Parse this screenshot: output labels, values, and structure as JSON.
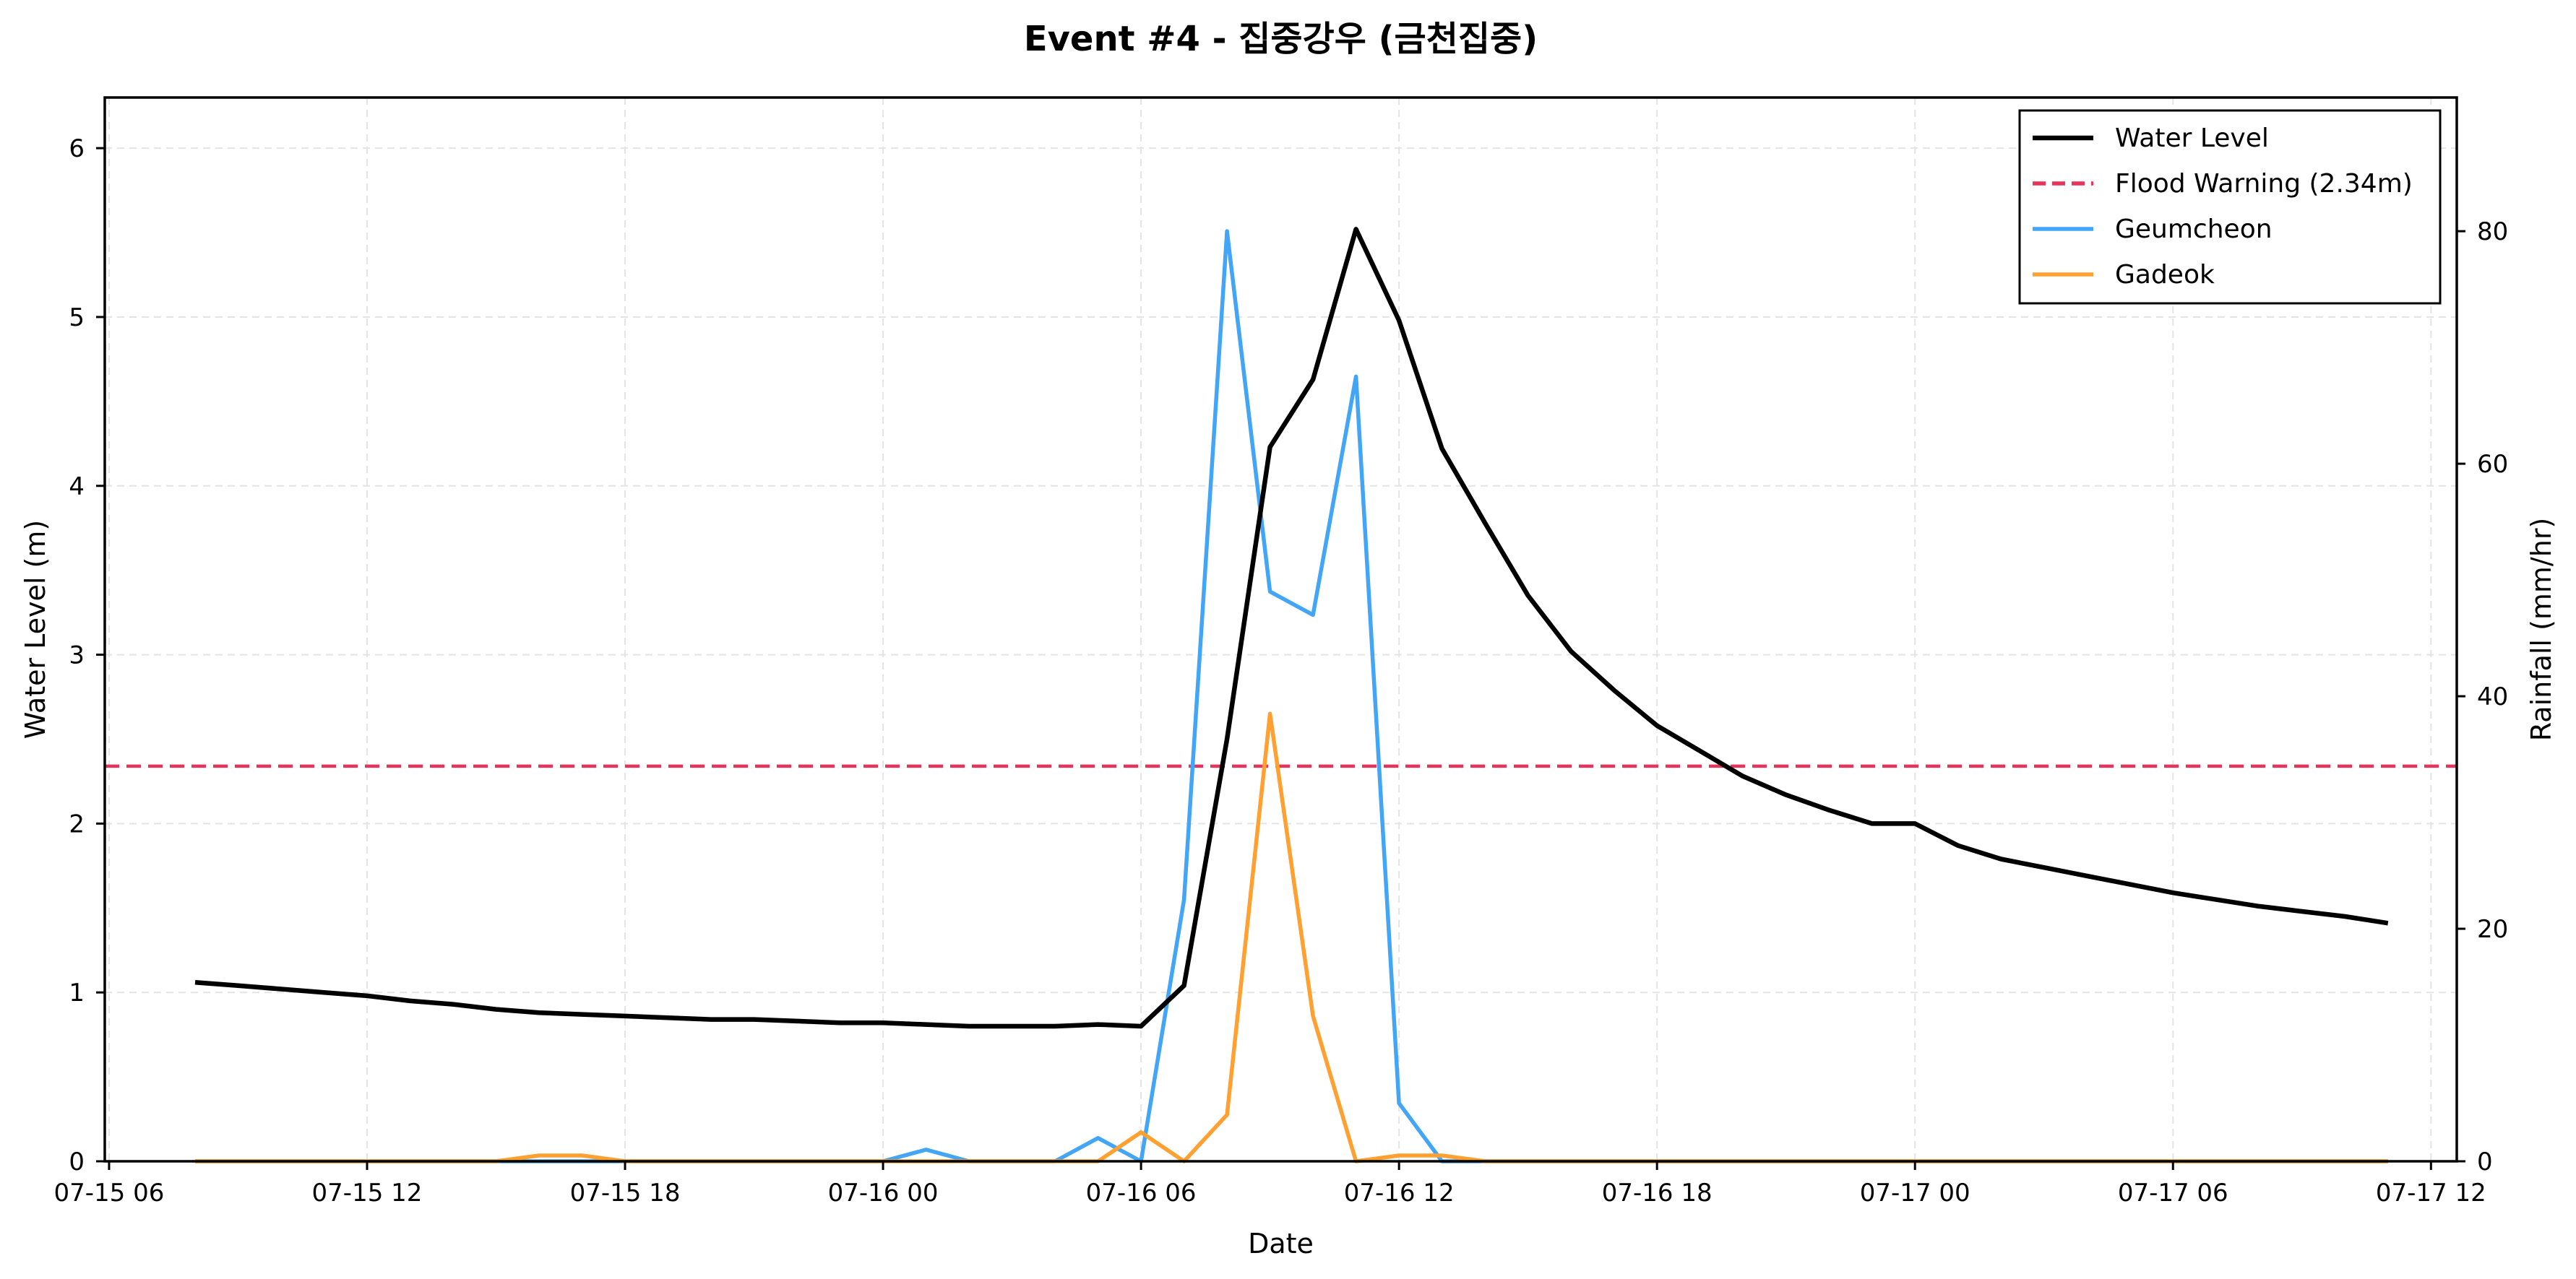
{
  "chart_data": {
    "type": "line",
    "title": "Event #4 - 집중강우 (금천집중)",
    "xlabel": "Date",
    "ylabel_left": "Water Level (m)",
    "ylabel_right": "Rainfall (mm/hr)",
    "ylim_left": [
      0,
      6.3
    ],
    "ylim_right": [
      0,
      91.5
    ],
    "xlim_hours": [
      5.9,
      60.6
    ],
    "x_unit": "hours after 07-15 00:00",
    "x_ticks": [
      {
        "hour": 6,
        "label": "07-15 06"
      },
      {
        "hour": 12,
        "label": "07-15 12"
      },
      {
        "hour": 18,
        "label": "07-15 18"
      },
      {
        "hour": 24,
        "label": "07-16 00"
      },
      {
        "hour": 30,
        "label": "07-16 06"
      },
      {
        "hour": 36,
        "label": "07-16 12"
      },
      {
        "hour": 42,
        "label": "07-16 18"
      },
      {
        "hour": 48,
        "label": "07-17 00"
      },
      {
        "hour": 54,
        "label": "07-17 06"
      },
      {
        "hour": 60,
        "label": "07-17 12"
      }
    ],
    "y_ticks_left": [
      "0",
      "1",
      "2",
      "3",
      "4",
      "5",
      "6"
    ],
    "y_ticks_right": [
      "0",
      "20",
      "40",
      "60",
      "80"
    ],
    "grid": true,
    "legend_position": "top-right",
    "legend": [
      {
        "label": "Water Level",
        "color": "#000000",
        "style": "solid"
      },
      {
        "label": "Flood Warning (2.34m)",
        "color": "#e8335a",
        "style": "dashed"
      },
      {
        "label": "Geumcheon",
        "color": "#42a5f5",
        "style": "solid"
      },
      {
        "label": "Gadeok",
        "color": "#ffa030",
        "style": "solid"
      }
    ],
    "flood_warning": 2.34,
    "x_hours": [
      8,
      9,
      10,
      11,
      12,
      13,
      14,
      15,
      16,
      17,
      18,
      19,
      20,
      21,
      22,
      23,
      24,
      25,
      26,
      27,
      28,
      29,
      30,
      31,
      32,
      33,
      34,
      35,
      36,
      37,
      38,
      39,
      40,
      41,
      42,
      43,
      44,
      45,
      46,
      47,
      48,
      49,
      50,
      51,
      52,
      53,
      54,
      55,
      56,
      57,
      58,
      59
    ],
    "series": [
      {
        "name": "Water Level",
        "axis": "left",
        "color": "#000000",
        "values": [
          1.06,
          1.04,
          1.02,
          1.0,
          0.98,
          0.95,
          0.93,
          0.9,
          0.88,
          0.87,
          0.86,
          0.85,
          0.84,
          0.84,
          0.83,
          0.82,
          0.82,
          0.81,
          0.8,
          0.8,
          0.8,
          0.81,
          0.8,
          1.04,
          2.5,
          4.23,
          4.63,
          5.52,
          4.98,
          4.22,
          3.78,
          3.35,
          3.02,
          2.79,
          2.58,
          2.43,
          2.28,
          2.17,
          2.08,
          2.0,
          2.0,
          1.87,
          1.79,
          1.74,
          1.69,
          1.64,
          1.59,
          1.55,
          1.51,
          1.48,
          1.45,
          1.41
        ]
      },
      {
        "name": "Geumcheon",
        "axis": "right",
        "color": "#42a5f5",
        "values": [
          0,
          0,
          0,
          0,
          0,
          0,
          0,
          0,
          0,
          0,
          0,
          0,
          0,
          0,
          0,
          0,
          0,
          1,
          0,
          0,
          0,
          2,
          0,
          22.5,
          80,
          49,
          47,
          67.5,
          5,
          0,
          0,
          0,
          0,
          0,
          0,
          0,
          0,
          0,
          0,
          0,
          0,
          0,
          0,
          0,
          0,
          0,
          0,
          0,
          0,
          0,
          0,
          0
        ]
      },
      {
        "name": "Gadeok",
        "axis": "right",
        "color": "#ffa030",
        "values": [
          0,
          0,
          0,
          0,
          0,
          0,
          0,
          0,
          0.5,
          0.5,
          0,
          0,
          0,
          0,
          0,
          0,
          0,
          0,
          0,
          0,
          0,
          0,
          2.5,
          0,
          4,
          38.5,
          12.5,
          0,
          0.5,
          0.5,
          0,
          0,
          0,
          0,
          0,
          0,
          0,
          0,
          0,
          0,
          0,
          0,
          0,
          0,
          0,
          0,
          0,
          0,
          0,
          0,
          0,
          0
        ]
      }
    ]
  }
}
